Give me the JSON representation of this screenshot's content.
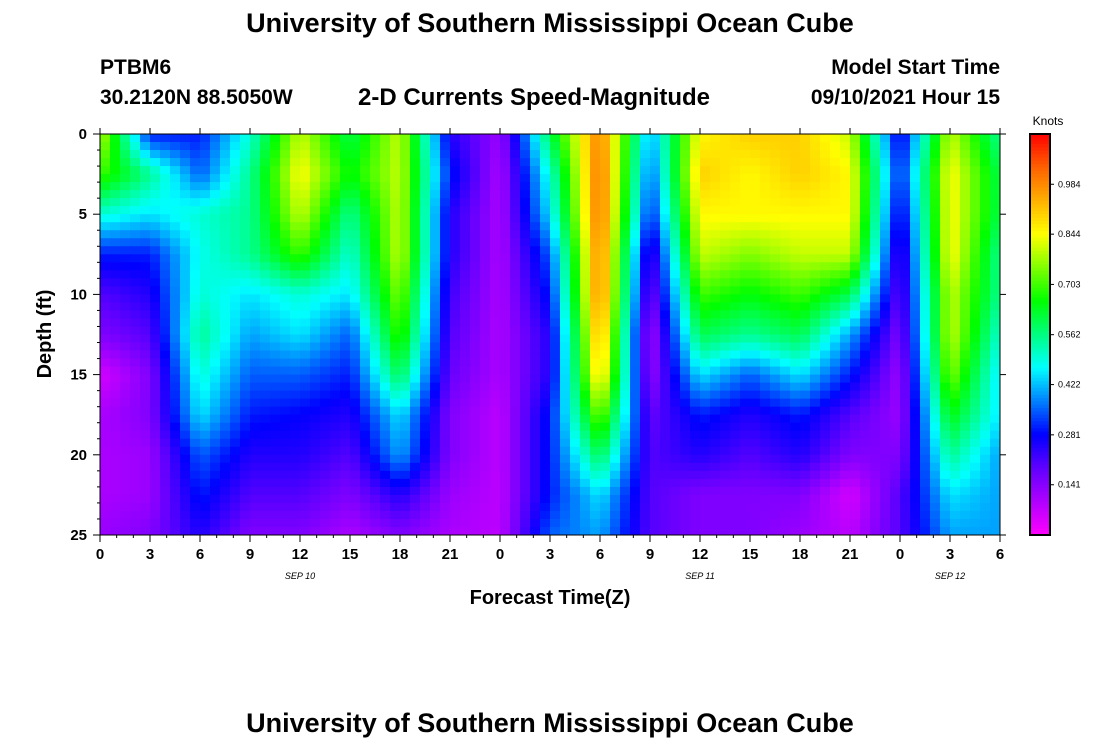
{
  "header": {
    "title": "University of Southern Mississippi Ocean Cube",
    "station_id": "PTBM6",
    "station_coords": "30.2120N  88.5050W",
    "chart_title": "2-D Currents Speed-Magnitude",
    "model_start_label": "Model Start Time",
    "model_start_value": "09/10/2021 Hour 15"
  },
  "footer": {
    "title": "University of Southern Mississippi Ocean Cube"
  },
  "chart_data": {
    "type": "heatmap",
    "title": "2-D Currents Speed-Magnitude",
    "xlabel": "Forecast Time(Z)",
    "ylabel": "Depth (ft)",
    "xlim": [
      0,
      54
    ],
    "ylim": [
      0,
      25
    ],
    "y_reversed": true,
    "x_tick_labels": [
      "0",
      "3",
      "6",
      "9",
      "12",
      "15",
      "18",
      "21",
      "0",
      "3",
      "6",
      "9",
      "12",
      "15",
      "18",
      "21",
      "0",
      "3",
      "6"
    ],
    "y_tick_labels": [
      "0",
      "5",
      "10",
      "15",
      "20",
      "25"
    ],
    "date_labels": [
      {
        "label": "SEP 10",
        "hour": 12
      },
      {
        "label": "SEP 11",
        "hour": 36
      },
      {
        "label": "SEP 12",
        "hour": 51
      }
    ],
    "colorbar": {
      "title": "Knots",
      "tick_labels": [
        "0.984",
        "0.844",
        "0.703",
        "0.562",
        "0.422",
        "0.281",
        "0.141"
      ],
      "min": 0.0,
      "max": 1.125,
      "colors": [
        "#ff00ff",
        "#b000ff",
        "#6000ff",
        "#0000ff",
        "#0080ff",
        "#00ffff",
        "#00ff80",
        "#00ff00",
        "#80ff00",
        "#ffff00",
        "#ffb000",
        "#ff6000",
        "#ff0000"
      ]
    },
    "depths": [
      0,
      2.5,
      5,
      7.5,
      10,
      12.5,
      15,
      17.5,
      20,
      22.5,
      25
    ],
    "hours": [
      0,
      3,
      6,
      9,
      12,
      15,
      18,
      21,
      24,
      27,
      30,
      33,
      36,
      39,
      42,
      45,
      48,
      51,
      54
    ],
    "speed_knots": [
      [
        0.8,
        0.3,
        0.3,
        0.5,
        0.8,
        0.6,
        0.8,
        0.25,
        0.12,
        0.6,
        1.0,
        0.4,
        0.85,
        0.9,
        0.9,
        0.8,
        0.25,
        0.8,
        0.55
      ],
      [
        0.7,
        0.55,
        0.35,
        0.55,
        0.85,
        0.65,
        0.8,
        0.3,
        0.1,
        0.5,
        1.02,
        0.35,
        0.9,
        0.85,
        0.9,
        0.85,
        0.3,
        0.85,
        0.6
      ],
      [
        0.5,
        0.45,
        0.5,
        0.55,
        0.8,
        0.55,
        0.8,
        0.25,
        0.1,
        0.45,
        1.02,
        0.3,
        0.85,
        0.85,
        0.85,
        0.85,
        0.25,
        0.85,
        0.6
      ],
      [
        0.3,
        0.3,
        0.48,
        0.55,
        0.7,
        0.5,
        0.8,
        0.25,
        0.1,
        0.35,
        1.0,
        0.2,
        0.8,
        0.75,
        0.8,
        0.8,
        0.2,
        0.85,
        0.55
      ],
      [
        0.2,
        0.25,
        0.5,
        0.45,
        0.5,
        0.45,
        0.75,
        0.22,
        0.1,
        0.3,
        1.0,
        0.15,
        0.7,
        0.65,
        0.7,
        0.6,
        0.18,
        0.8,
        0.55
      ],
      [
        0.15,
        0.2,
        0.55,
        0.4,
        0.45,
        0.35,
        0.7,
        0.2,
        0.1,
        0.25,
        0.95,
        0.1,
        0.6,
        0.55,
        0.6,
        0.4,
        0.15,
        0.8,
        0.5
      ],
      [
        0.05,
        0.15,
        0.5,
        0.35,
        0.35,
        0.3,
        0.6,
        0.18,
        0.1,
        0.25,
        0.9,
        0.12,
        0.45,
        0.35,
        0.45,
        0.3,
        0.12,
        0.75,
        0.45
      ],
      [
        0.1,
        0.15,
        0.45,
        0.3,
        0.28,
        0.25,
        0.45,
        0.15,
        0.08,
        0.3,
        0.75,
        0.18,
        0.3,
        0.25,
        0.3,
        0.2,
        0.12,
        0.65,
        0.45
      ],
      [
        0.1,
        0.12,
        0.35,
        0.25,
        0.25,
        0.2,
        0.4,
        0.15,
        0.08,
        0.3,
        0.6,
        0.2,
        0.25,
        0.2,
        0.25,
        0.15,
        0.15,
        0.55,
        0.4
      ],
      [
        0.1,
        0.12,
        0.3,
        0.2,
        0.2,
        0.15,
        0.25,
        0.12,
        0.08,
        0.3,
        0.45,
        0.2,
        0.15,
        0.15,
        0.15,
        0.05,
        0.2,
        0.45,
        0.4
      ],
      [
        0.12,
        0.15,
        0.25,
        0.15,
        0.15,
        0.1,
        0.15,
        0.1,
        0.08,
        0.35,
        0.4,
        0.2,
        0.15,
        0.15,
        0.12,
        0.08,
        0.2,
        0.4,
        0.4
      ]
    ]
  }
}
